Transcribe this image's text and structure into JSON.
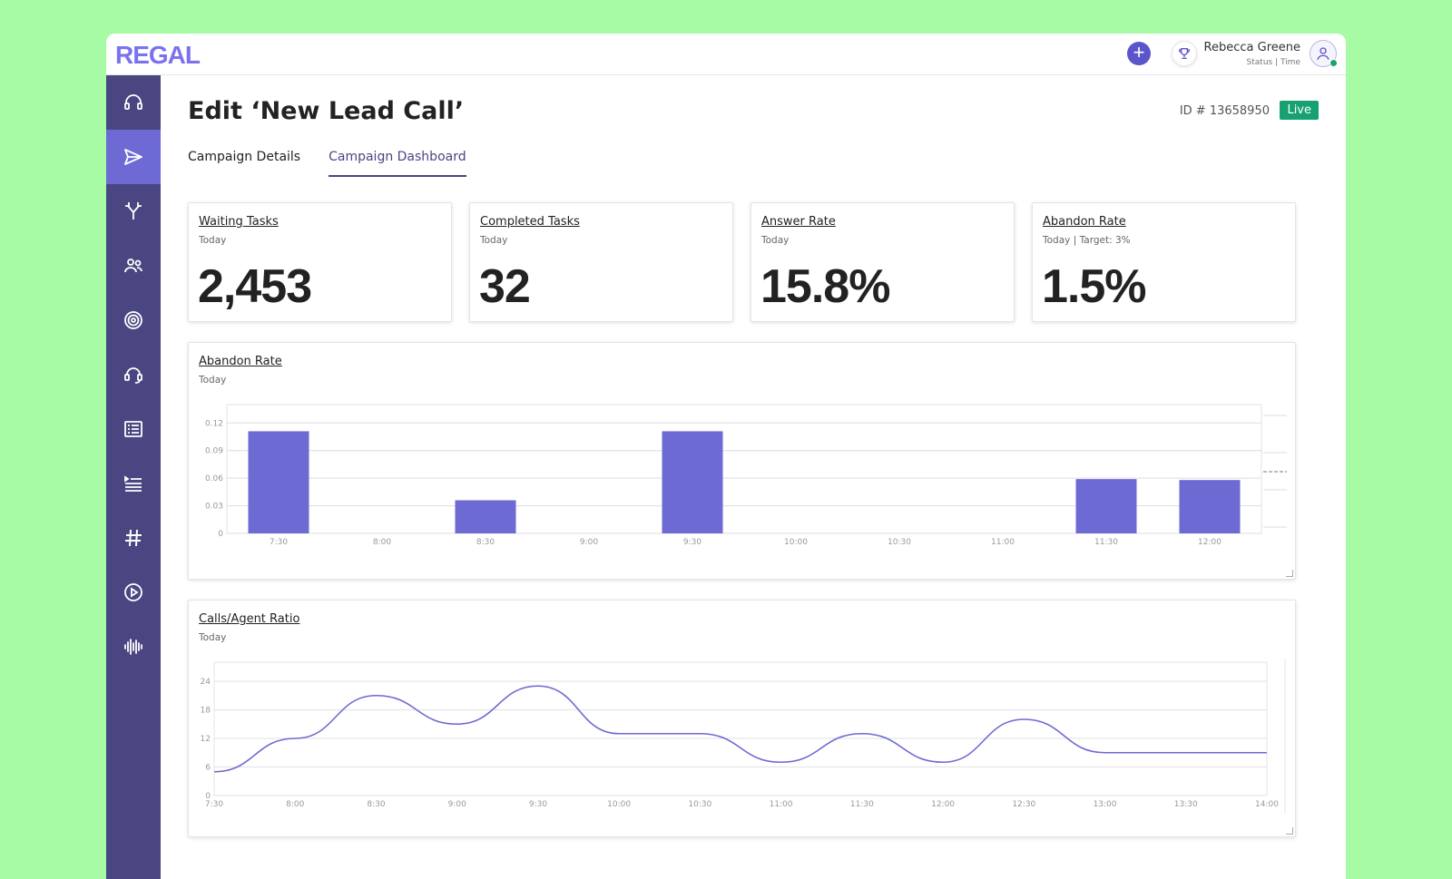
{
  "brand": {
    "logo": "REGAL",
    "accent": "#6e6ad3",
    "sidebar_bg": "#4a4681",
    "live_color": "#17a070"
  },
  "header": {
    "add_icon": "plus-icon",
    "trophy_icon": "trophy-icon",
    "user_name": "Rebecca Greene",
    "user_status": "Status | Time",
    "avatar_icon": "user-icon"
  },
  "sidebar": {
    "items": [
      {
        "icon": "headset-icon",
        "active": false
      },
      {
        "icon": "send-icon",
        "active": true
      },
      {
        "icon": "branch-icon",
        "active": false
      },
      {
        "icon": "contacts-icon",
        "active": false
      },
      {
        "icon": "target-icon",
        "active": false
      },
      {
        "icon": "agent-headset-icon",
        "active": false
      },
      {
        "icon": "form-list-icon",
        "active": false
      },
      {
        "icon": "queue-list-icon",
        "active": false
      },
      {
        "icon": "hash-icon",
        "active": false
      },
      {
        "icon": "play-circle-icon",
        "active": false
      },
      {
        "icon": "audio-wave-icon",
        "active": false
      }
    ]
  },
  "page": {
    "title": "Edit ‘New Lead Call’",
    "id_label": "ID # 13658950",
    "status_badge": "Live"
  },
  "tabs": [
    {
      "label": "Campaign Details",
      "active": false
    },
    {
      "label": "Campaign Dashboard",
      "active": true
    }
  ],
  "stats": [
    {
      "title": "Waiting Tasks",
      "sub": "Today",
      "value": "2,453"
    },
    {
      "title": "Completed Tasks",
      "sub": "Today",
      "value": "32"
    },
    {
      "title": "Answer Rate",
      "sub": "Today",
      "value": "15.8%"
    },
    {
      "title": "Abandon Rate",
      "sub": "Today | Target: 3%",
      "value": "1.5%"
    }
  ],
  "charts": {
    "abandon": {
      "title": "Abandon Rate",
      "sub": "Today"
    },
    "ratio": {
      "title": "Calls/Agent Ratio",
      "sub": "Today"
    }
  },
  "chart_data": [
    {
      "type": "bar",
      "title": "Abandon Rate",
      "categories": [
        "7:30",
        "8:00",
        "8:30",
        "9:00",
        "9:30",
        "10:00",
        "10:30",
        "11:00",
        "11:30",
        "12:00"
      ],
      "values": [
        0.111,
        0,
        0.036,
        0,
        0.111,
        0,
        0,
        0,
        0.059,
        0.058
      ],
      "yticks": [
        "0",
        "0.03",
        "0.06",
        "0.09",
        "0.12"
      ],
      "ylim": [
        0,
        0.14
      ],
      "color": "#6e6ad3",
      "grid": true
    },
    {
      "type": "line",
      "title": "Calls/Agent Ratio",
      "x": [
        "7:30",
        "8:00",
        "8:30",
        "9:00",
        "9:30",
        "10:00",
        "10:30",
        "11:00",
        "11:30",
        "12:00",
        "12:30",
        "13:00",
        "13:30",
        "14:00"
      ],
      "values": [
        5,
        12,
        21,
        15,
        23,
        13,
        13,
        7,
        13,
        7,
        16,
        9,
        9,
        9
      ],
      "yticks": [
        "0",
        "6",
        "12",
        "18",
        "24"
      ],
      "ylim": [
        0,
        28
      ],
      "color": "#6e6ad3",
      "grid": true
    }
  ]
}
